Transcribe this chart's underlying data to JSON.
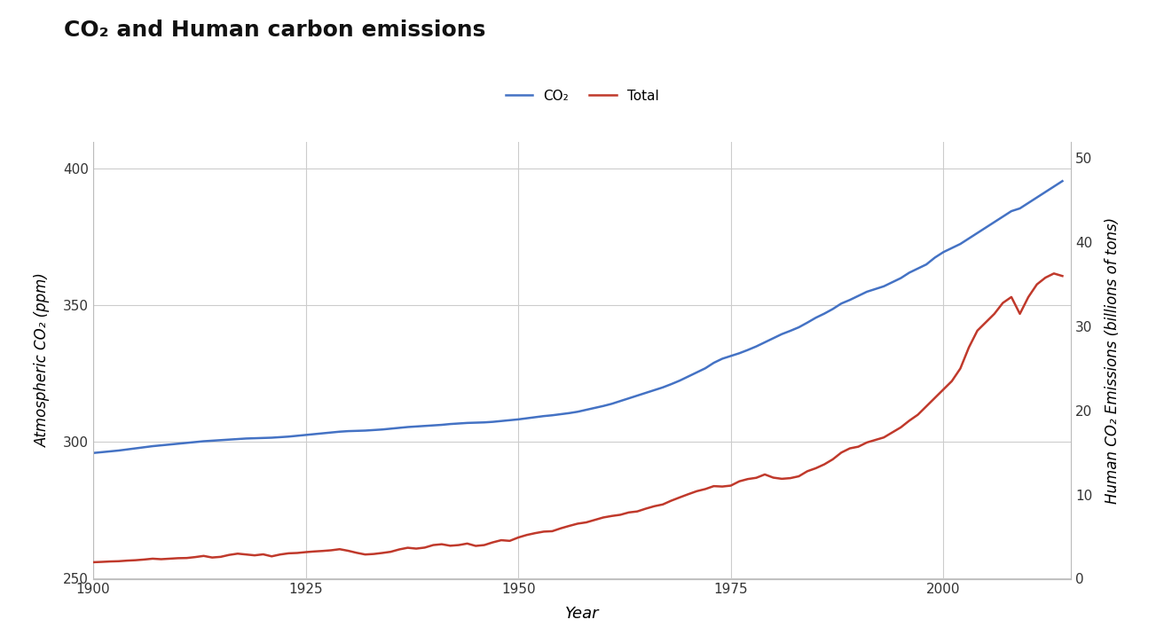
{
  "title": "CO₂ and Human carbon emissions",
  "xlabel": "Year",
  "ylabel_left": "Atmospheric CO₂ (ppm)",
  "ylabel_right": "Human CO₂ Emissions (billions of tons)",
  "legend_co2": "CO₂",
  "legend_total": "Total",
  "co2_color": "#4472C4",
  "total_color": "#C0392B",
  "background_color": "#ffffff",
  "grid_color": "#cccccc",
  "ylim_left": [
    250,
    410
  ],
  "ylim_right": [
    0,
    52
  ],
  "xlim": [
    1900,
    2015
  ],
  "yticks_left": [
    250,
    300,
    350,
    400
  ],
  "yticks_right": [
    0,
    10,
    20,
    30,
    40,
    50
  ],
  "xticks": [
    1900,
    1925,
    1950,
    1975,
    2000
  ],
  "years": [
    1900,
    1901,
    1902,
    1903,
    1904,
    1905,
    1906,
    1907,
    1908,
    1909,
    1910,
    1911,
    1912,
    1913,
    1914,
    1915,
    1916,
    1917,
    1918,
    1919,
    1920,
    1921,
    1922,
    1923,
    1924,
    1925,
    1926,
    1927,
    1928,
    1929,
    1930,
    1931,
    1932,
    1933,
    1934,
    1935,
    1936,
    1937,
    1938,
    1939,
    1940,
    1941,
    1942,
    1943,
    1944,
    1945,
    1946,
    1947,
    1948,
    1949,
    1950,
    1951,
    1952,
    1953,
    1954,
    1955,
    1956,
    1957,
    1958,
    1959,
    1960,
    1961,
    1962,
    1963,
    1964,
    1965,
    1966,
    1967,
    1968,
    1969,
    1970,
    1971,
    1972,
    1973,
    1974,
    1975,
    1976,
    1977,
    1978,
    1979,
    1980,
    1981,
    1982,
    1983,
    1984,
    1985,
    1986,
    1987,
    1988,
    1989,
    1990,
    1991,
    1992,
    1993,
    1994,
    1995,
    1996,
    1997,
    1998,
    1999,
    2000,
    2001,
    2002,
    2003,
    2004,
    2005,
    2006,
    2007,
    2008,
    2009,
    2010,
    2011,
    2012,
    2013,
    2014
  ],
  "co2_ppm": [
    296.0,
    296.3,
    296.6,
    296.9,
    297.3,
    297.7,
    298.1,
    298.5,
    298.8,
    299.1,
    299.4,
    299.7,
    300.0,
    300.3,
    300.5,
    300.7,
    300.9,
    301.1,
    301.3,
    301.4,
    301.5,
    301.6,
    301.8,
    302.0,
    302.3,
    302.6,
    302.9,
    303.2,
    303.5,
    303.8,
    304.0,
    304.1,
    304.2,
    304.4,
    304.6,
    304.9,
    305.2,
    305.5,
    305.7,
    305.9,
    306.1,
    306.3,
    306.6,
    306.8,
    307.0,
    307.1,
    307.2,
    307.4,
    307.7,
    308.0,
    308.3,
    308.7,
    309.1,
    309.5,
    309.8,
    310.2,
    310.6,
    311.1,
    311.8,
    312.5,
    313.2,
    314.0,
    315.0,
    316.0,
    317.0,
    318.0,
    319.0,
    320.0,
    321.2,
    322.5,
    324.0,
    325.5,
    327.0,
    329.0,
    330.5,
    331.5,
    332.5,
    333.7,
    335.0,
    336.5,
    338.0,
    339.5,
    340.7,
    342.0,
    343.7,
    345.5,
    347.0,
    348.7,
    350.7,
    352.0,
    353.5,
    355.0,
    356.0,
    357.0,
    358.5,
    360.0,
    362.0,
    363.5,
    365.0,
    367.5,
    369.5,
    371.0,
    372.5,
    374.5,
    376.5,
    378.5,
    380.5,
    382.5,
    384.5,
    385.5,
    387.5,
    389.5,
    391.5,
    393.5,
    395.5
  ],
  "total_emissions": [
    1.96,
    2.0,
    2.05,
    2.08,
    2.15,
    2.2,
    2.28,
    2.38,
    2.32,
    2.38,
    2.44,
    2.46,
    2.57,
    2.71,
    2.52,
    2.6,
    2.83,
    2.98,
    2.88,
    2.78,
    2.9,
    2.66,
    2.88,
    3.02,
    3.06,
    3.16,
    3.24,
    3.3,
    3.38,
    3.51,
    3.32,
    3.08,
    2.88,
    2.94,
    3.06,
    3.2,
    3.48,
    3.68,
    3.58,
    3.7,
    4.0,
    4.1,
    3.92,
    4.0,
    4.18,
    3.9,
    4.0,
    4.32,
    4.58,
    4.5,
    4.9,
    5.2,
    5.42,
    5.6,
    5.65,
    5.99,
    6.28,
    6.55,
    6.7,
    6.99,
    7.28,
    7.46,
    7.6,
    7.88,
    8.0,
    8.33,
    8.62,
    8.83,
    9.28,
    9.67,
    10.05,
    10.41,
    10.66,
    11.01,
    10.96,
    11.07,
    11.58,
    11.85,
    12.0,
    12.4,
    12.02,
    11.88,
    11.96,
    12.18,
    12.78,
    13.14,
    13.6,
    14.2,
    15.0,
    15.5,
    15.7,
    16.2,
    16.5,
    16.8,
    17.4,
    18.0,
    18.8,
    19.5,
    20.5,
    21.5,
    22.5,
    23.5,
    25.0,
    27.5,
    29.5,
    30.5,
    31.5,
    32.8,
    33.5,
    31.5,
    33.5,
    35.0,
    35.8,
    36.3,
    36.0
  ]
}
